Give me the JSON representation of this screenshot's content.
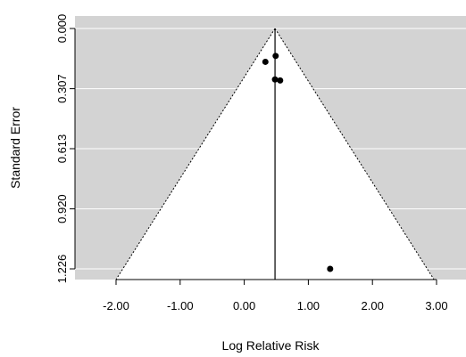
{
  "chart_data": {
    "type": "scatter",
    "subtype": "funnel plot",
    "xlabel": "Log Relative Risk",
    "ylabel": "Standard Error",
    "xlim": [
      -2.6,
      3.4
    ],
    "ylim_reversed": [
      0.0,
      1.226
    ],
    "x_ticks": [
      -2.0,
      -1.0,
      0.0,
      1.0,
      2.0,
      3.0
    ],
    "x_tick_labels": [
      "-2.00",
      "-1.00",
      "0.00",
      "1.00",
      "2.00",
      "3.00"
    ],
    "y_ticks": [
      0.0,
      0.307,
      0.613,
      0.92,
      1.226
    ],
    "y_tick_labels": [
      "0.000",
      "0.307",
      "0.613",
      "0.920",
      "1.226"
    ],
    "center_estimate": 0.48,
    "funnel_left_at_max_se": -2.0,
    "funnel_right_at_max_se": 2.96,
    "points": [
      {
        "x": 0.33,
        "y": 0.17
      },
      {
        "x": 0.49,
        "y": 0.14
      },
      {
        "x": 0.48,
        "y": 0.26
      },
      {
        "x": 0.56,
        "y": 0.265
      },
      {
        "x": 1.34,
        "y": 1.226
      }
    ],
    "grid": true,
    "legend": "none",
    "colors": {
      "background": "#d3d3d3",
      "funnel": "#ffffff",
      "gridline": "#ffffff",
      "points": "#000000"
    }
  }
}
